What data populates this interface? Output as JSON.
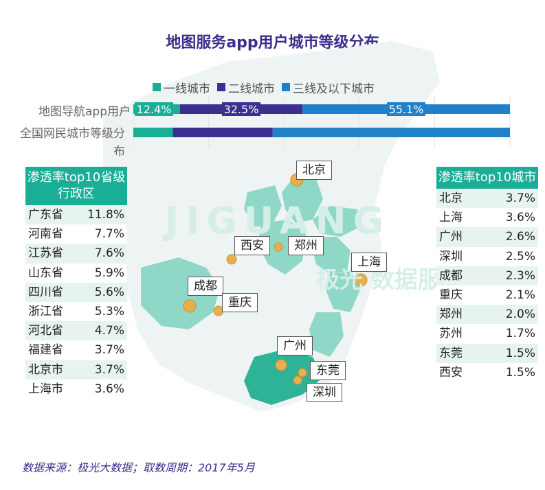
{
  "title": "地图服务app用户城市等级分布",
  "colors": {
    "tier1": "#1aae96",
    "tier2": "#3b2f8f",
    "tier3": "#2280c8",
    "map": "#8fd8c8",
    "map_dark": "#2fb397",
    "dot": "#e8b04a"
  },
  "chart_data": [
    {
      "type": "bar",
      "orientation": "horizontal-stacked",
      "categories": [
        "地图导航app用户",
        "全国网民城市等级分布"
      ],
      "series": [
        {
          "name": "一线城市",
          "values": [
            12.4,
            10.5
          ],
          "labels": [
            "12.4%",
            ""
          ]
        },
        {
          "name": "二线城市",
          "values": [
            32.5,
            26.5
          ],
          "labels": [
            "32.5%",
            ""
          ]
        },
        {
          "name": "三线及以下城市",
          "values": [
            55.1,
            63.0
          ],
          "labels": [
            "55.1%",
            ""
          ]
        }
      ],
      "xlim": [
        0,
        100
      ],
      "legend": "top",
      "grid": true
    },
    {
      "type": "table",
      "title": "渗透率top10省级行政区",
      "rows": [
        {
          "name": "广东省",
          "value": "11.8%"
        },
        {
          "name": "河南省",
          "value": "7.7%"
        },
        {
          "name": "江苏省",
          "value": "7.6%"
        },
        {
          "name": "山东省",
          "value": "5.9%"
        },
        {
          "name": "四川省",
          "value": "5.6%"
        },
        {
          "name": "浙江省",
          "value": "5.3%"
        },
        {
          "name": "河北省",
          "value": "4.7%"
        },
        {
          "name": "福建省",
          "value": "3.7%"
        },
        {
          "name": "北京市",
          "value": "3.7%"
        },
        {
          "name": "上海市",
          "value": "3.6%"
        }
      ]
    },
    {
      "type": "table",
      "title": "渗透率top10城市",
      "rows": [
        {
          "name": "北京",
          "value": "3.7%"
        },
        {
          "name": "上海",
          "value": "3.6%"
        },
        {
          "name": "广州",
          "value": "2.6%"
        },
        {
          "name": "深圳",
          "value": "2.5%"
        },
        {
          "name": "成都",
          "value": "2.3%"
        },
        {
          "name": "重庆",
          "value": "2.1%"
        },
        {
          "name": "郑州",
          "value": "2.0%"
        },
        {
          "name": "苏州",
          "value": "1.7%"
        },
        {
          "name": "东莞",
          "value": "1.5%"
        },
        {
          "name": "西安",
          "value": "1.5%"
        }
      ]
    }
  ],
  "map": {
    "city_labels": [
      "北京",
      "西安",
      "郑州",
      "上海",
      "成都",
      "重庆",
      "广州",
      "东莞",
      "深圳"
    ]
  },
  "watermark": {
    "text_latin": "JIGUANG",
    "text_cn": "极光 数据服务"
  },
  "source": "数据来源：极光大数据；取数周期：2017年5月"
}
